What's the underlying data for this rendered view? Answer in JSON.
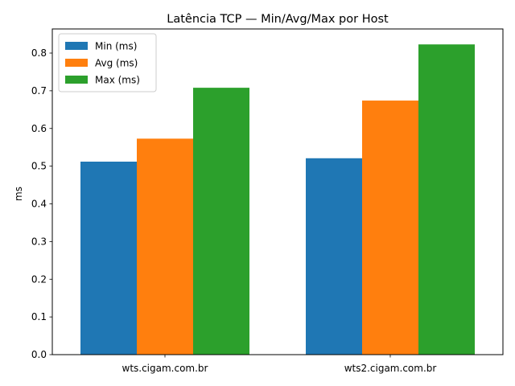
{
  "chart_data": {
    "type": "bar",
    "title": "Latência TCP — Min/Avg/Max por Host",
    "xlabel": "",
    "ylabel": "ms",
    "categories": [
      "wts.cigam.com.br",
      "wts2.cigam.com.br"
    ],
    "series": [
      {
        "name": "Min (ms)",
        "values": [
          0.512,
          0.521
        ],
        "color": "#1f77b4"
      },
      {
        "name": "Avg (ms)",
        "values": [
          0.573,
          0.674
        ],
        "color": "#ff7f0e"
      },
      {
        "name": "Max (ms)",
        "values": [
          0.708,
          0.823
        ],
        "color": "#2ca02c"
      }
    ],
    "ylim": [
      0,
      0.864
    ],
    "yticks": [
      "0.0",
      "0.1",
      "0.2",
      "0.3",
      "0.4",
      "0.5",
      "0.6",
      "0.7",
      "0.8"
    ],
    "grid": false,
    "legend_position": "top-left"
  }
}
